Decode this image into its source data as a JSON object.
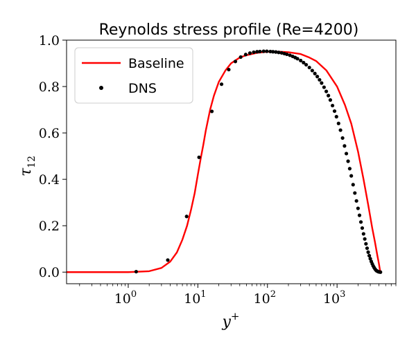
{
  "chart_data": {
    "type": "line",
    "title": "Reynolds stress profile (Re=4200)",
    "xlabel": "y+",
    "ylabel": "τ12",
    "x_scale": "log",
    "xlim": [
      0.13,
      7000
    ],
    "ylim": [
      -0.05,
      1.0
    ],
    "x_tick_exponents": [
      0,
      1,
      2,
      3
    ],
    "x_tick_labels": [
      "10",
      "10",
      "10",
      "10"
    ],
    "x_tick_label_superscripts": [
      "0",
      "1",
      "2",
      "3"
    ],
    "y_ticks": [
      0.0,
      0.2,
      0.4,
      0.6,
      0.8,
      1.0
    ],
    "y_tick_labels": [
      "0.0",
      "0.2",
      "0.4",
      "0.6",
      "0.8",
      "1.0"
    ],
    "grid": false,
    "legend_position": "top-left",
    "series": [
      {
        "name": "Baseline",
        "style": "line",
        "color": "#ff0000",
        "x": [
          0.13,
          1,
          2,
          3,
          4,
          5,
          6,
          7,
          8,
          9,
          10,
          11,
          12,
          13,
          15,
          17,
          20,
          25,
          30,
          40,
          50,
          70,
          100,
          150,
          200,
          300,
          400,
          500,
          700,
          1000,
          1300,
          1600,
          2000,
          2400,
          2800,
          3200,
          3500,
          3800,
          4000,
          4100,
          4200
        ],
        "y": [
          0.0,
          0.0,
          0.004,
          0.018,
          0.045,
          0.085,
          0.14,
          0.2,
          0.27,
          0.34,
          0.42,
          0.49,
          0.55,
          0.61,
          0.7,
          0.76,
          0.82,
          0.87,
          0.9,
          0.925,
          0.935,
          0.945,
          0.95,
          0.95,
          0.948,
          0.94,
          0.925,
          0.91,
          0.87,
          0.8,
          0.72,
          0.64,
          0.52,
          0.4,
          0.29,
          0.19,
          0.13,
          0.07,
          0.035,
          0.015,
          0.0
        ]
      },
      {
        "name": "DNS",
        "style": "scatter",
        "color": "#000000",
        "x": [
          1.3,
          3.7,
          6.9,
          10.4,
          15.9,
          21.9,
          27.8,
          34.6,
          41.3,
          48.7,
          56,
          63.5,
          71,
          78,
          88,
          98,
          110,
          120,
          132,
          145,
          160,
          175,
          190,
          210,
          230,
          250,
          270,
          300,
          330,
          360,
          400,
          440,
          480,
          520,
          560,
          600,
          650,
          700,
          750,
          800,
          860,
          920,
          980,
          1050,
          1120,
          1200,
          1280,
          1360,
          1440,
          1520,
          1600,
          1700,
          1800,
          1900,
          2000,
          2100,
          2200,
          2300,
          2400,
          2500,
          2600,
          2700,
          2800,
          2900,
          3000,
          3100,
          3200,
          3300,
          3400,
          3500,
          3600,
          3700,
          3800,
          3900,
          4000,
          4100,
          4200
        ],
        "y": [
          0.002,
          0.052,
          0.24,
          0.495,
          0.693,
          0.81,
          0.873,
          0.908,
          0.927,
          0.938,
          0.944,
          0.948,
          0.95,
          0.951,
          0.952,
          0.952,
          0.951,
          0.95,
          0.949,
          0.947,
          0.945,
          0.942,
          0.939,
          0.935,
          0.93,
          0.925,
          0.92,
          0.912,
          0.903,
          0.894,
          0.882,
          0.869,
          0.856,
          0.843,
          0.829,
          0.815,
          0.797,
          0.779,
          0.761,
          0.742,
          0.718,
          0.694,
          0.67,
          0.641,
          0.612,
          0.578,
          0.544,
          0.511,
          0.478,
          0.446,
          0.415,
          0.377,
          0.341,
          0.307,
          0.275,
          0.245,
          0.216,
          0.19,
          0.165,
          0.143,
          0.122,
          0.103,
          0.086,
          0.071,
          0.058,
          0.046,
          0.036,
          0.027,
          0.02,
          0.014,
          0.009,
          0.006,
          0.004,
          0.002,
          0.001,
          0.0005,
          0.0
        ]
      }
    ]
  }
}
